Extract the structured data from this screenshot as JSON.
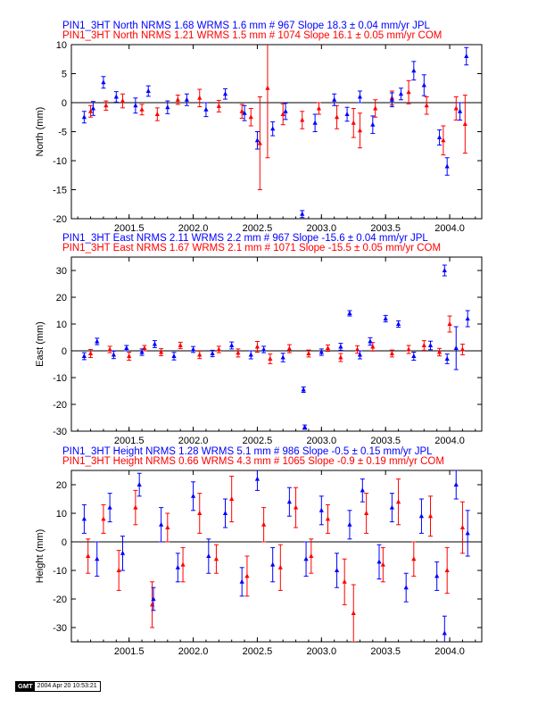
{
  "stamp": {
    "logo": "GMT",
    "timestamp": "2004 Apr 20 10:53:21"
  },
  "chart_data": [
    {
      "type": "scatter",
      "component": "north",
      "ylabel": "North (mm)",
      "xlim": [
        2001.05,
        2004.25
      ],
      "ylim": [
        -20,
        10
      ],
      "xticks": [
        2001.5,
        2002.0,
        2002.5,
        2003.0,
        2003.5,
        2004.0
      ],
      "xtick_labels": [
        "2001.5",
        "2002.0",
        "2002.5",
        "2003.0",
        "2003.5",
        "2004.0"
      ],
      "yticks": [
        10,
        5,
        0,
        -5,
        -10,
        -15,
        -20
      ],
      "ytick_labels": [
        "10",
        "5",
        "0",
        "-5",
        "-10",
        "-15",
        "-20"
      ],
      "series": [
        {
          "name": "COM",
          "color": "#ff0000",
          "title": "PIN1_3HT North NRMS 1.21 WRMS  1.5 mm # 1074 Slope   16.1 ±  0.05 mm/yr COM",
          "x": [
            2001.2,
            2001.32,
            2001.45,
            2001.6,
            2001.72,
            2001.88,
            2002.05,
            2002.2,
            2002.38,
            2002.45,
            2002.52,
            2002.58,
            2002.7,
            2002.85,
            2002.98,
            2003.12,
            2003.25,
            2003.3,
            2003.42,
            2003.55,
            2003.68,
            2003.82,
            2003.95,
            2004.05,
            2004.12
          ],
          "y": [
            -1.5,
            -0.5,
            0.3,
            -1.2,
            -2.0,
            0.5,
            0.8,
            -0.6,
            -1.5,
            -2.5,
            -7.0,
            2.5,
            -2.0,
            -3.0,
            -1.0,
            -2.5,
            -3.5,
            -4.8,
            -1.0,
            0.8,
            1.8,
            -0.5,
            -6.5,
            -1.0,
            -3.7
          ],
          "err": [
            1.0,
            0.8,
            1.2,
            0.9,
            1.1,
            0.8,
            1.5,
            1.0,
            1.2,
            1.5,
            8.0,
            12.0,
            1.8,
            1.5,
            1.0,
            2.0,
            2.5,
            3.0,
            1.5,
            1.2,
            2.0,
            1.5,
            2.5,
            2.0,
            5.0
          ]
        },
        {
          "name": "JPL",
          "color": "#0000ff",
          "title": "PIN1_3HT North NRMS 1.68 WRMS  1.6 mm # 967 Slope   18.3 ±  0.04 mm/yr JPL",
          "x": [
            2001.15,
            2001.22,
            2001.3,
            2001.4,
            2001.55,
            2001.65,
            2001.8,
            2001.95,
            2002.1,
            2002.25,
            2002.4,
            2002.5,
            2002.62,
            2002.72,
            2002.85,
            2002.95,
            2003.1,
            2003.2,
            2003.3,
            2003.4,
            2003.55,
            2003.62,
            2003.72,
            2003.8,
            2003.92,
            2003.98,
            2004.08,
            2004.13
          ],
          "y": [
            -2.5,
            -1.0,
            3.5,
            1.0,
            -0.5,
            2.0,
            -0.8,
            0.5,
            -1.2,
            1.5,
            -1.8,
            -6.5,
            -4.5,
            -1.5,
            -19.2,
            -3.5,
            0.5,
            -2.0,
            1.0,
            -3.8,
            0.5,
            1.5,
            5.5,
            3.0,
            -6.0,
            -11.0,
            -1.5,
            8.0
          ],
          "err": [
            1.0,
            1.2,
            1.0,
            0.9,
            1.3,
            0.9,
            1.1,
            1.0,
            1.2,
            0.9,
            1.3,
            1.5,
            1.2,
            1.4,
            0.6,
            1.5,
            1.0,
            1.2,
            1.0,
            1.5,
            1.2,
            1.0,
            1.6,
            1.8,
            1.3,
            1.5,
            1.5,
            1.5
          ]
        }
      ]
    },
    {
      "type": "scatter",
      "component": "east",
      "ylabel": "East (mm)",
      "xlim": [
        2001.05,
        2004.25
      ],
      "ylim": [
        -30,
        35
      ],
      "xticks": [
        2001.5,
        2002.0,
        2002.5,
        2003.0,
        2003.5,
        2004.0
      ],
      "xtick_labels": [
        "2001.5",
        "2002.0",
        "2002.5",
        "2003.0",
        "2003.5",
        "2004.0"
      ],
      "yticks": [
        30,
        20,
        10,
        0,
        -10,
        -20,
        -30
      ],
      "ytick_labels": [
        "30",
        "20",
        "10",
        "0",
        "-10",
        "-20",
        "-30"
      ],
      "series": [
        {
          "name": "COM",
          "color": "#ff0000",
          "title": "PIN1_3HT East NRMS 1.67 WRMS  2.1 mm # 1071 Slope  -15.5 ±  0.05 mm/yr COM",
          "x": [
            2001.2,
            2001.35,
            2001.5,
            2001.62,
            2001.75,
            2001.9,
            2002.05,
            2002.2,
            2002.35,
            2002.5,
            2002.6,
            2002.75,
            2002.9,
            2003.05,
            2003.15,
            2003.28,
            2003.4,
            2003.55,
            2003.68,
            2003.8,
            2003.92,
            2004.0,
            2004.1
          ],
          "y": [
            -1.0,
            0.5,
            -2.0,
            1.0,
            -0.5,
            2.0,
            -1.5,
            0.5,
            -0.8,
            1.5,
            -3.0,
            0.8,
            -1.0,
            1.0,
            -2.5,
            0.5,
            1.5,
            -1.0,
            0.5,
            2.0,
            -0.5,
            10.0,
            0.5
          ],
          "err": [
            1.5,
            1.2,
            1.5,
            1.0,
            1.3,
            1.2,
            1.4,
            1.2,
            1.5,
            2.0,
            1.8,
            1.5,
            1.3,
            1.2,
            1.5,
            1.4,
            1.6,
            1.3,
            1.5,
            1.8,
            1.4,
            3.0,
            2.0
          ]
        },
        {
          "name": "JPL",
          "color": "#0000ff",
          "title": "PIN1_3HT East NRMS 2.11 WRMS  2.2 mm # 967 Slope  -15.6 ±  0.04 mm/yr JPL",
          "x": [
            2001.15,
            2001.25,
            2001.38,
            2001.48,
            2001.6,
            2001.7,
            2001.85,
            2002.0,
            2002.15,
            2002.3,
            2002.45,
            2002.55,
            2002.7,
            2002.86,
            2002.87,
            2003.0,
            2003.15,
            2003.22,
            2003.3,
            2003.38,
            2003.5,
            2003.6,
            2003.72,
            2003.85,
            2003.96,
            2003.98,
            2004.05,
            2004.14
          ],
          "y": [
            -2.0,
            3.5,
            -1.5,
            1.0,
            -0.5,
            2.5,
            -2.0,
            0.5,
            -1.0,
            2.0,
            -1.5,
            0.5,
            -2.5,
            -14.5,
            -28.5,
            -0.5,
            1.5,
            14.0,
            -1.5,
            3.5,
            12.0,
            10.0,
            -2.0,
            2.0,
            30.0,
            -3.0,
            1.0,
            12.0
          ],
          "err": [
            1.3,
            1.2,
            1.4,
            1.0,
            1.2,
            1.3,
            1.4,
            1.1,
            1.2,
            1.3,
            1.5,
            1.2,
            1.6,
            1.0,
            0.8,
            1.2,
            1.3,
            1.0,
            1.5,
            1.4,
            1.2,
            1.2,
            1.5,
            1.6,
            2.0,
            1.8,
            8.0,
            3.0
          ]
        }
      ]
    },
    {
      "type": "scatter",
      "component": "height",
      "ylabel": "Height (mm)",
      "xlim": [
        2001.05,
        2004.25
      ],
      "ylim": [
        -35,
        25
      ],
      "xticks": [
        2001.5,
        2002.0,
        2002.5,
        2003.0,
        2003.5,
        2004.0
      ],
      "xtick_labels": [
        "2001.5",
        "2002.0",
        "2002.5",
        "2003.0",
        "2003.5",
        "2004.0"
      ],
      "yticks": [
        20,
        10,
        0,
        -10,
        -20,
        -30
      ],
      "ytick_labels": [
        "20",
        "10",
        "0",
        "-10",
        "-20",
        "-30"
      ],
      "series": [
        {
          "name": "COM",
          "color": "#ff0000",
          "title": "PIN1_3HT Height NRMS 0.66 WRMS  4.3 mm # 1065 Slope   -0.9 ±  0.19 mm/yr COM",
          "x": [
            2001.18,
            2001.3,
            2001.42,
            2001.55,
            2001.68,
            2001.8,
            2001.92,
            2002.05,
            2002.18,
            2002.3,
            2002.42,
            2002.55,
            2002.68,
            2002.8,
            2002.92,
            2003.05,
            2003.18,
            2003.25,
            2003.35,
            2003.48,
            2003.6,
            2003.72,
            2003.85,
            2003.98,
            2004.1
          ],
          "y": [
            -5.0,
            8.0,
            -10.0,
            12.0,
            -22.0,
            5.0,
            -8.0,
            10.0,
            -6.0,
            15.0,
            -12.0,
            6.0,
            -9.0,
            12.0,
            -5.0,
            8.0,
            -14.0,
            -25.0,
            10.0,
            -8.0,
            14.0,
            -6.0,
            9.0,
            -10.0,
            5.0
          ],
          "err": [
            6.0,
            5.0,
            7.0,
            6.0,
            8.0,
            5.0,
            6.0,
            7.0,
            5.0,
            8.0,
            7.0,
            6.0,
            8.0,
            7.0,
            6.0,
            5.0,
            8.0,
            10.0,
            7.0,
            6.0,
            8.0,
            6.0,
            7.0,
            8.0,
            9.0
          ]
        },
        {
          "name": "JPL",
          "color": "#0000ff",
          "title": "PIN1_3HT Height NRMS 1.28 WRMS  5.1 mm # 986 Slope   -0.5 ±  0.15 mm/yr JPL",
          "x": [
            2001.15,
            2001.25,
            2001.35,
            2001.45,
            2001.58,
            2001.69,
            2001.75,
            2001.88,
            2002.0,
            2002.12,
            2002.25,
            2002.38,
            2002.5,
            2002.62,
            2002.75,
            2002.88,
            2003.0,
            2003.12,
            2003.22,
            2003.32,
            2003.45,
            2003.55,
            2003.66,
            2003.78,
            2003.9,
            2003.96,
            2004.05,
            2004.14
          ],
          "y": [
            8.0,
            -6.0,
            12.0,
            -4.0,
            20.0,
            -20.0,
            6.0,
            -9.0,
            16.0,
            -5.0,
            10.0,
            -14.0,
            22.0,
            -8.0,
            14.0,
            -6.0,
            11.0,
            -10.0,
            6.0,
            18.0,
            -7.0,
            12.0,
            -16.0,
            9.0,
            -12.0,
            -32.0,
            20.0,
            3.0
          ],
          "err": [
            5.0,
            6.0,
            5.0,
            6.0,
            4.0,
            4.0,
            6.0,
            5.0,
            5.0,
            6.0,
            5.0,
            5.0,
            4.0,
            6.0,
            5.0,
            6.0,
            5.0,
            6.0,
            5.0,
            4.0,
            6.0,
            5.0,
            5.0,
            6.0,
            5.0,
            6.0,
            5.0,
            8.0
          ]
        }
      ]
    }
  ]
}
